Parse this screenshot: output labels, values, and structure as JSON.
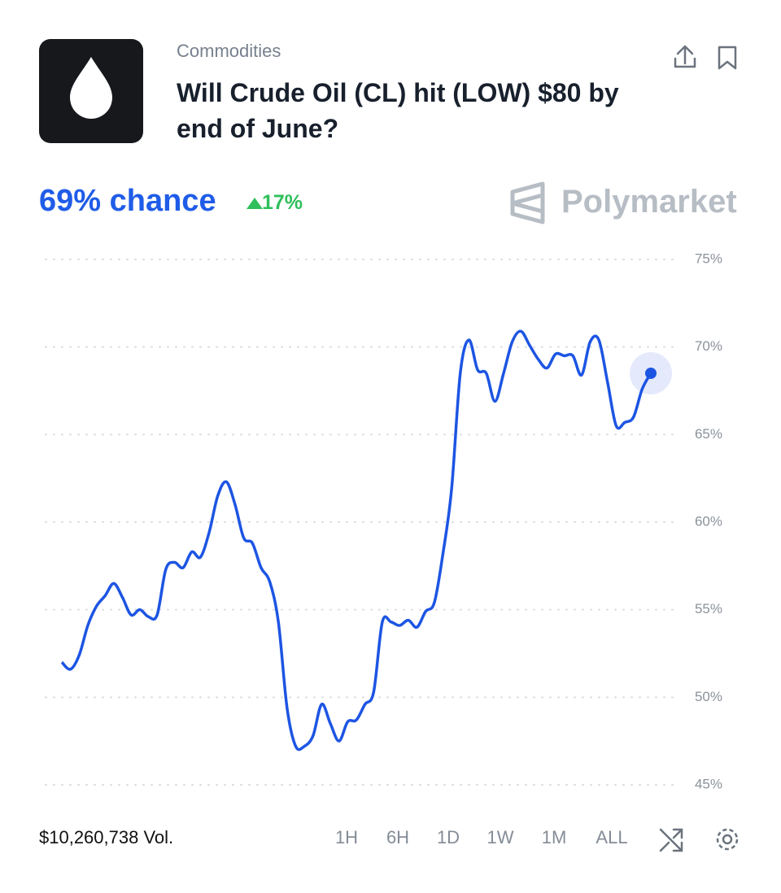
{
  "header": {
    "category": "Commodities",
    "title": "Will Crude Oil (CL) hit (LOW) $80 by end of June?"
  },
  "summary": {
    "chance": "69% chance",
    "change": "17%",
    "brand": "Polymarket"
  },
  "footer": {
    "volume": "$10,260,738 Vol.",
    "ranges": [
      "1H",
      "6H",
      "1D",
      "1W",
      "1M",
      "ALL"
    ]
  },
  "chart_data": {
    "type": "line",
    "color": "#1d55e3",
    "grid": true,
    "ylim": [
      45,
      75
    ],
    "yticks": [
      {
        "value": 45,
        "label": "45%"
      },
      {
        "value": 50,
        "label": "50%"
      },
      {
        "value": 55,
        "label": "55%"
      },
      {
        "value": 60,
        "label": "60%"
      },
      {
        "value": 65,
        "label": "65%"
      },
      {
        "value": 70,
        "label": "70%"
      },
      {
        "value": 75,
        "label": "75%"
      }
    ],
    "values": [
      52.0,
      51.6,
      52.4,
      54.1,
      55.2,
      55.8,
      56.5,
      55.7,
      54.7,
      55.0,
      54.6,
      54.7,
      57.3,
      57.7,
      57.4,
      58.3,
      58.0,
      59.4,
      61.5,
      62.3,
      61.0,
      59.1,
      58.8,
      57.4,
      56.6,
      54.3,
      49.4,
      47.2,
      47.2,
      47.8,
      49.6,
      48.5,
      47.5,
      48.6,
      48.7,
      49.6,
      50.3,
      54.3,
      54.3,
      54.1,
      54.4,
      54.0,
      54.9,
      55.4,
      58.2,
      61.9,
      68.5,
      70.4,
      68.7,
      68.5,
      66.9,
      68.5,
      70.3,
      70.9,
      70.1,
      69.3,
      68.8,
      69.6,
      69.5,
      69.5,
      68.4,
      70.3,
      70.4,
      68.0,
      65.5,
      65.7,
      66.0,
      67.6,
      68.5
    ]
  }
}
